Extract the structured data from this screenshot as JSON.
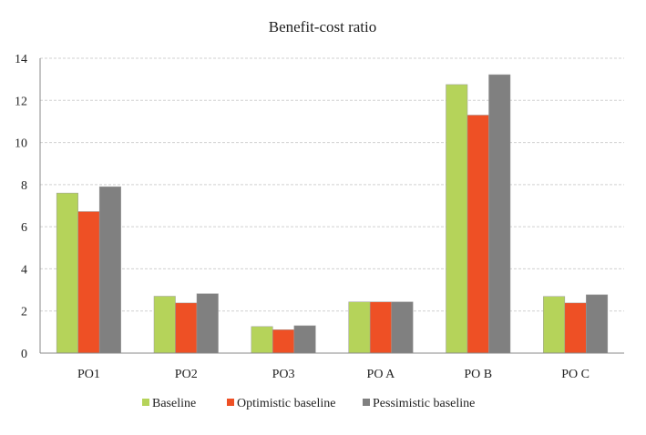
{
  "chart_data": {
    "type": "bar",
    "title": "Benefit-cost ratio",
    "xlabel": "",
    "ylabel": "",
    "ylim": [
      0,
      14
    ],
    "yticks": [
      0,
      2,
      4,
      6,
      8,
      10,
      12,
      14
    ],
    "grid": true,
    "legend_position": "bottom",
    "categories": [
      "PO1",
      "PO2",
      "PO3",
      "PO A",
      "PO B",
      "PO C"
    ],
    "series": [
      {
        "name": "Baseline",
        "color": "#b5d35a",
        "values": [
          7.6,
          2.7,
          1.26,
          2.43,
          12.75,
          2.69
        ]
      },
      {
        "name": "Optimistic baseline",
        "color": "#ee5025",
        "values": [
          6.72,
          2.38,
          1.11,
          2.43,
          11.3,
          2.38
        ]
      },
      {
        "name": "Pessimistic baseline",
        "color": "#808080",
        "values": [
          7.9,
          2.82,
          1.3,
          2.43,
          13.22,
          2.77
        ]
      }
    ]
  }
}
